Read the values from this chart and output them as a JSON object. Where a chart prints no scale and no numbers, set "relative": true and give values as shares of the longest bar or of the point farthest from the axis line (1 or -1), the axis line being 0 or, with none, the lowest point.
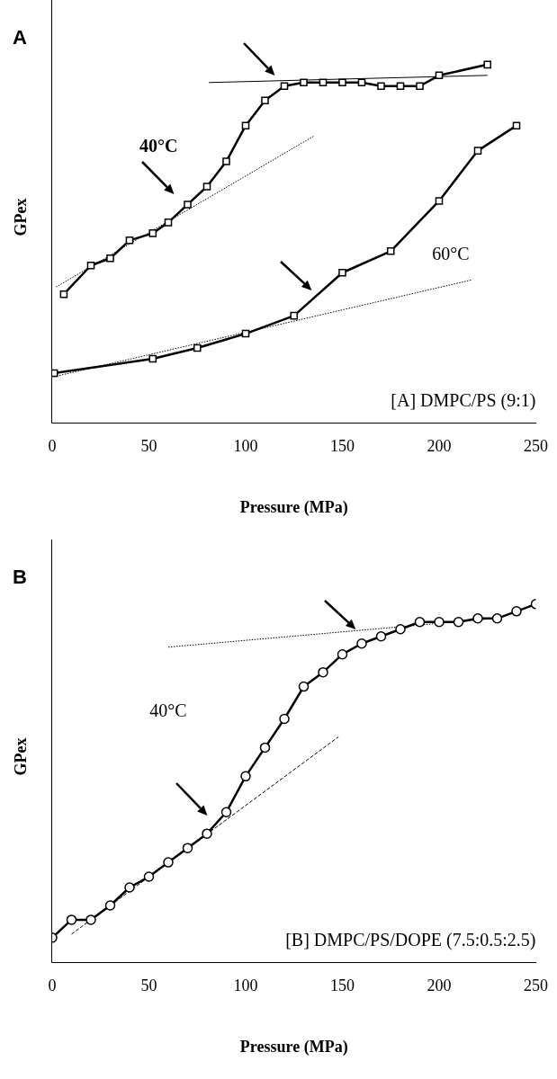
{
  "chart_data": [
    {
      "type": "line",
      "title": "A",
      "xlabel": "Pressure (MPa)",
      "ylabel": "GPex",
      "relative": true,
      "xlim": [
        0,
        250
      ],
      "xticks": [
        0,
        50,
        100,
        150,
        200,
        250
      ],
      "tick_labels": "x",
      "annotations": [
        "[A] DMPC/PS (9:1)"
      ],
      "series": [
        {
          "name": "40°C",
          "color": "#000000",
          "marker": "square",
          "line_style": "solid",
          "x": [
            6,
            20,
            30,
            40,
            52,
            60,
            70,
            80,
            90,
            100,
            110,
            120,
            130,
            140,
            150,
            160,
            170,
            180,
            190,
            200,
            225
          ],
          "values": [
            0.36,
            0.44,
            0.46,
            0.51,
            0.53,
            0.56,
            0.61,
            0.66,
            0.73,
            0.83,
            0.9,
            0.94,
            0.95,
            0.95,
            0.95,
            0.95,
            0.94,
            0.94,
            0.94,
            0.97,
            1
          ]
        },
        {
          "name": "60°C",
          "color": "#000000",
          "marker": "square",
          "line_style": "solid",
          "x": [
            1,
            52,
            75,
            100,
            125,
            150,
            175,
            200,
            220,
            240
          ],
          "values": [
            0.14,
            0.18,
            0.21,
            0.25,
            0.3,
            0.42,
            0.48,
            0.62,
            0.76,
            0.83
          ]
        },
        {
          "type": "line",
          "color": "#000000",
          "marker": "none",
          "line_style": "dotted",
          "x": [
            2,
            135
          ],
          "values": [
            0.38,
            0.8
          ]
        },
        {
          "type": "line",
          "color": "#000000",
          "marker": "none",
          "line_style": "solid",
          "x": [
            81,
            225
          ],
          "values": [
            0.95,
            0.97
          ]
        },
        {
          "type": "line",
          "color": "#000000",
          "marker": "none",
          "line_style": "dotted",
          "x": [
            1,
            217
          ],
          "values": [
            0.13,
            0.4
          ]
        }
      ]
    },
    {
      "type": "line",
      "title": "B",
      "xlabel": "Pressure (MPa)",
      "ylabel": "GPex",
      "relative": true,
      "xlim": [
        0,
        250
      ],
      "xticks": [
        0,
        50,
        100,
        150,
        200,
        250
      ],
      "tick_labels": "x",
      "annotations": [
        "[B] DMPC/PS/DOPE (7.5:0.5:2.5)"
      ],
      "series": [
        {
          "name": "40°C",
          "color": "#000000",
          "marker": "circle",
          "line_style": "solid",
          "x": [
            0,
            10,
            20,
            30,
            40,
            50,
            60,
            70,
            80,
            90,
            100,
            110,
            120,
            130,
            140,
            150,
            160,
            170,
            180,
            190,
            200,
            210,
            220,
            230,
            240,
            250
          ],
          "values": [
            0.07,
            0.12,
            0.12,
            0.16,
            0.21,
            0.24,
            0.28,
            0.32,
            0.36,
            0.42,
            0.52,
            0.6,
            0.68,
            0.77,
            0.81,
            0.86,
            0.89,
            0.91,
            0.93,
            0.95,
            0.95,
            0.95,
            0.96,
            0.96,
            0.98,
            1
          ]
        },
        {
          "type": "line",
          "color": "#000000",
          "marker": "none",
          "line_style": "dotted",
          "x": [
            60,
            229
          ],
          "values": [
            0.88,
            0.96
          ]
        },
        {
          "type": "line",
          "color": "#000000",
          "marker": "none",
          "line_style": "dashed",
          "x": [
            10,
            148
          ],
          "values": [
            0.08,
            0.63
          ]
        }
      ]
    }
  ]
}
